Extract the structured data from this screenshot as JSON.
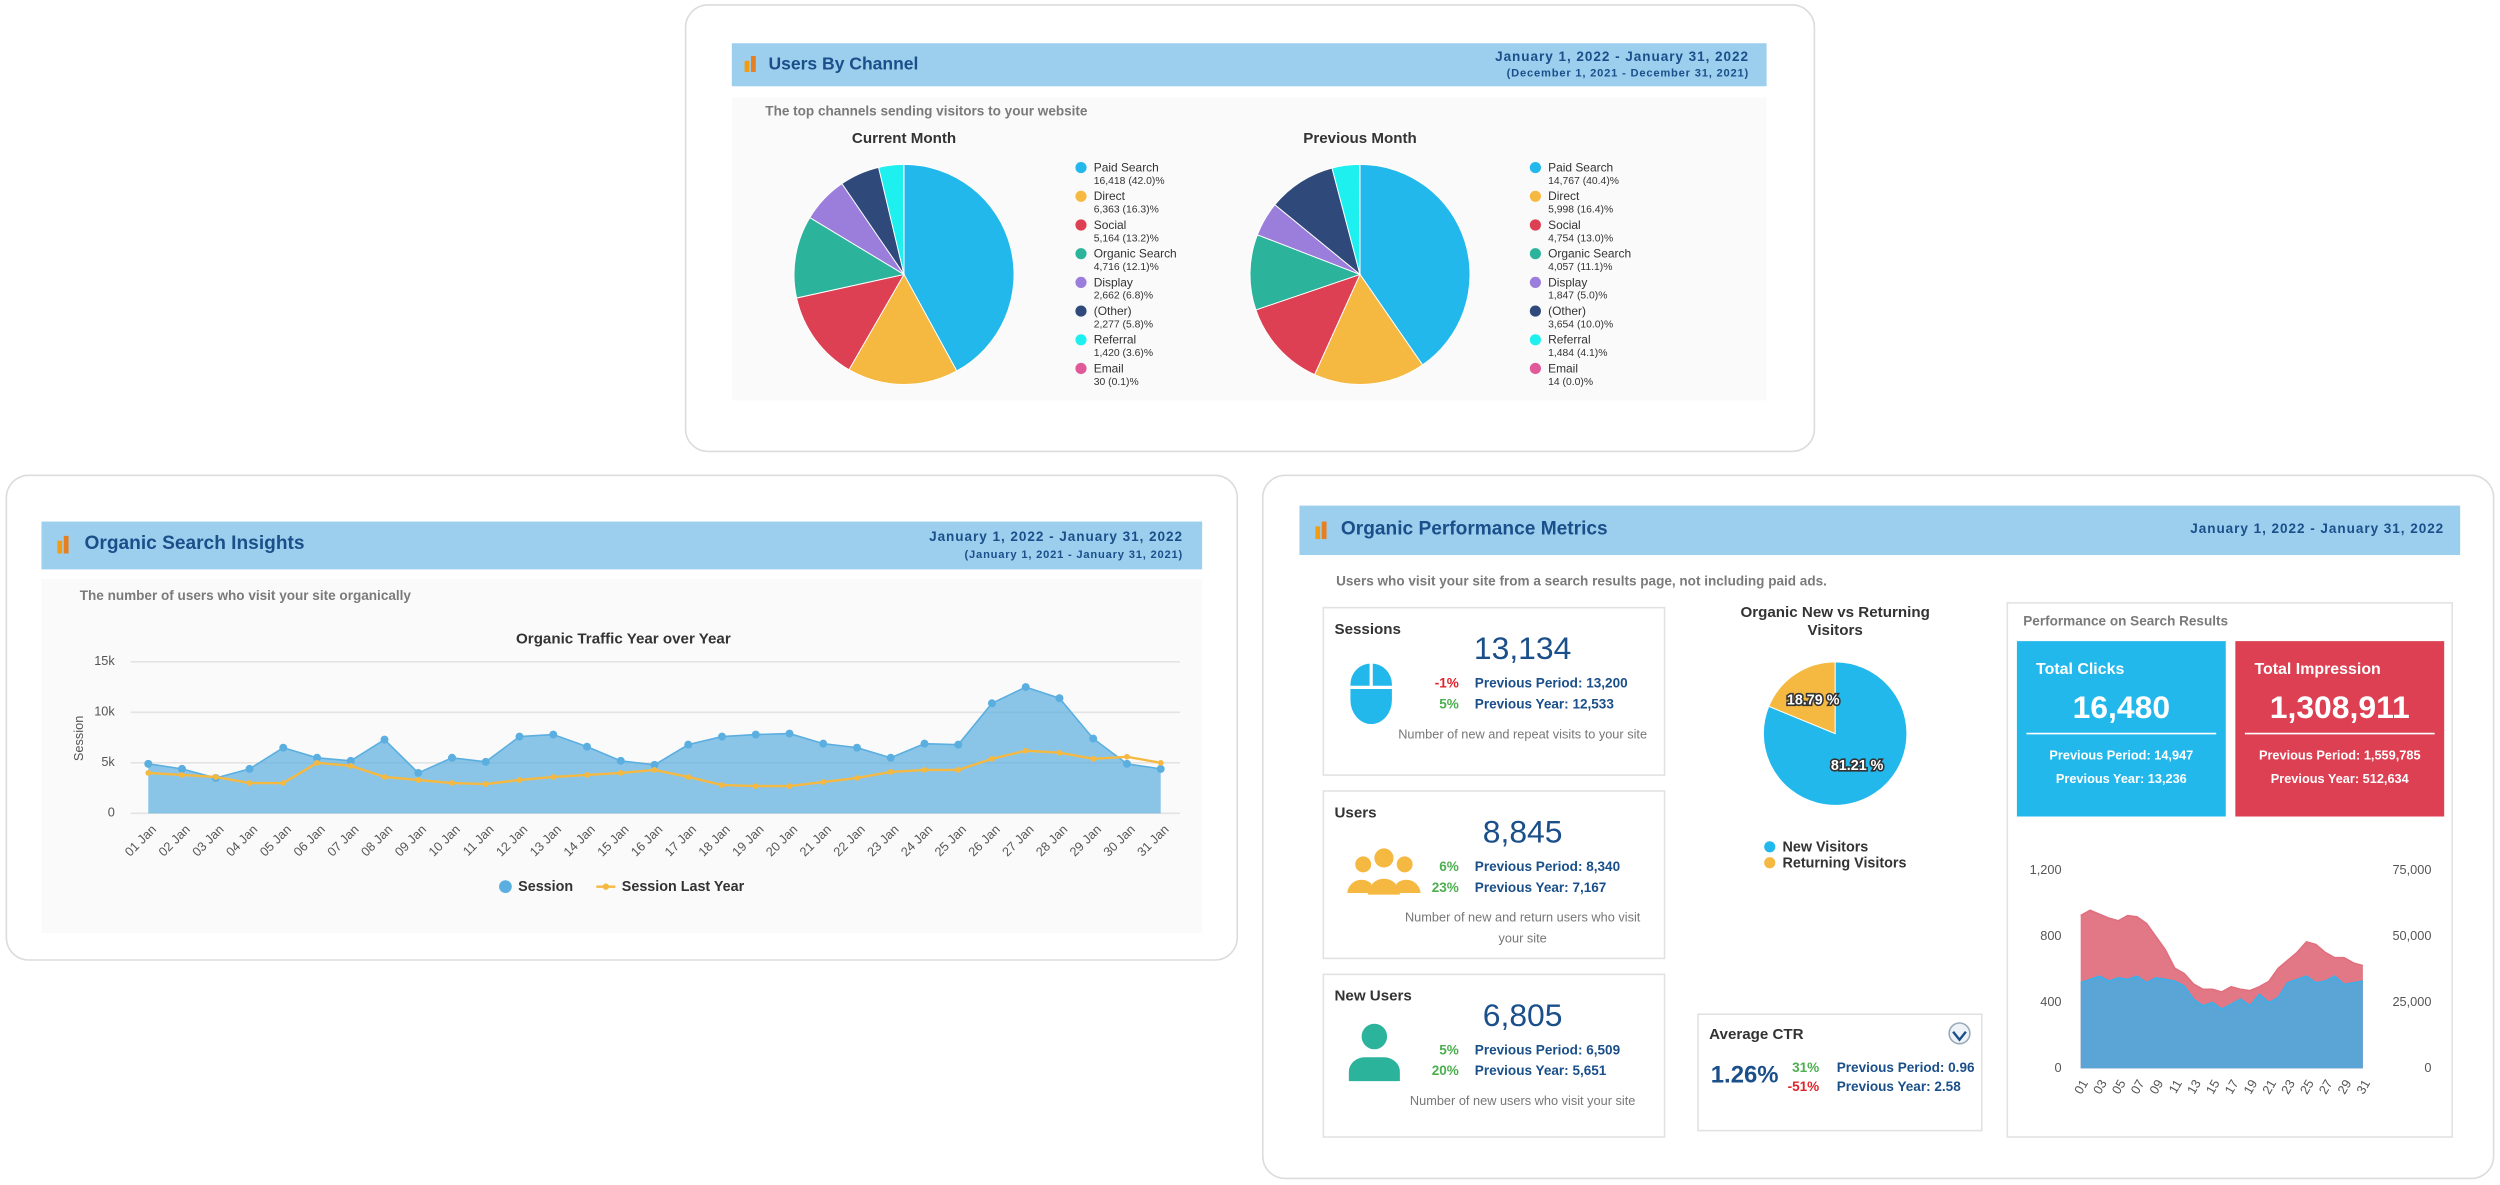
{
  "panels": {
    "channels": {
      "title": "Users By Channel",
      "date": "January 1, 2022 - January 31, 2022",
      "previous_date": "(December 1, 2021 - December 31, 2021)",
      "subtitle": "The top channels sending visitors to your website"
    },
    "organic_insights": {
      "title": "Organic Search Insights",
      "date": "January 1, 2022 - January 31, 2022",
      "previous_date": "(January 1, 2021 - January 31, 2021)",
      "subtitle": "The number of users who visit your site organically"
    },
    "performance": {
      "title": "Organic Performance Metrics",
      "date": "January 1, 2022 - January 31, 2022",
      "subtitle": "Users who visit your site from a search results page, not including paid ads.",
      "metrics": [
        {
          "label": "Sessions",
          "value": "13,134",
          "changes": [
            {
              "change": "-1%",
              "text": "Previous Period: 13,200"
            },
            {
              "change": "5%",
              "text": "Previous Year: 12,533"
            }
          ],
          "description": "Number of new and repeat visits to your site"
        },
        {
          "label": "Users",
          "value": "8,845",
          "changes": [
            {
              "change": "6%",
              "text": "Previous Period: 8,340"
            },
            {
              "change": "23%",
              "text": "Previous Year: 7,167"
            }
          ],
          "description": "Number of new and return users who visit your site"
        },
        {
          "label": "New Users",
          "value": "6,805",
          "changes": [
            {
              "change": "5%",
              "text": "Previous Period: 6,509"
            },
            {
              "change": "20%",
              "text": "Previous Year: 5,651"
            }
          ],
          "description": "Number of new users who visit your site"
        }
      ],
      "ctr": {
        "label": "Average CTR",
        "value": "1.26%",
        "changes": [
          {
            "change": "31%",
            "text": "Previous Period: 0.96"
          },
          {
            "change": "-51%",
            "text": "Previous Year: 2.58"
          }
        ]
      },
      "search_results": {
        "title": "Performance on Search Results",
        "colors": [
          "#22b8ec",
          "#dc4052"
        ],
        "cards": [
          {
            "label": "Total Clicks",
            "value": "16,480",
            "previous_period": "Previous Period: 14,947",
            "previous_year": "Previous Year: 13,236"
          },
          {
            "label": "Total Impression",
            "value": "1,308,911",
            "previous_period": "Previous Period: 1,559,785",
            "previous_year": "Previous Year: 512,634"
          }
        ]
      }
    }
  },
  "chart_data": [
    {
      "type": "pie",
      "title": "Current Month",
      "categories": [
        "Paid Search",
        "Direct",
        "Social",
        "Organic Search",
        "Display",
        "(Other)",
        "Referral",
        "Email"
      ],
      "values": [
        16418,
        6363,
        5164,
        4716,
        2662,
        2277,
        1420,
        30
      ],
      "value_labels": [
        "16,418 (42.0)%",
        "6,363 (16.3)%",
        "5,164 (13.2)%",
        "4,716 (12.1)%",
        "2,662 (6.8)%",
        "2,277 (5.8)%",
        "1,420 (3.6)%",
        "30 (0.1)%"
      ],
      "colors": [
        "#22b8ec",
        "#f5b942",
        "#dc4052",
        "#2bb39b",
        "#9b7ddb",
        "#2f4a7a",
        "#1ef0f0",
        "#e05a9a"
      ],
      "legend": "right"
    },
    {
      "type": "pie",
      "title": "Previous Month",
      "categories": [
        "Paid Search",
        "Direct",
        "Social",
        "Organic Search",
        "Display",
        "(Other)",
        "Referral",
        "Email"
      ],
      "values": [
        14767,
        5998,
        4754,
        4057,
        1847,
        3654,
        1484,
        14
      ],
      "value_labels": [
        "14,767 (40.4)%",
        "5,998 (16.4)%",
        "4,754 (13.0)%",
        "4,057 (11.1)%",
        "1,847 (5.0)%",
        "3,654 (10.0)%",
        "1,484 (4.1)%",
        "14 (0.0)%"
      ],
      "colors": [
        "#22b8ec",
        "#f5b942",
        "#dc4052",
        "#2bb39b",
        "#9b7ddb",
        "#2f4a7a",
        "#1ef0f0",
        "#e05a9a"
      ],
      "legend": "right"
    },
    {
      "type": "line",
      "title": "Organic Traffic Year over Year",
      "y_label": "Session",
      "categories": [
        "01 Jan",
        "02 Jan",
        "03 Jan",
        "04 Jan",
        "05 Jan",
        "06 Jan",
        "07 Jan",
        "08 Jan",
        "09 Jan",
        "10 Jan",
        "11 Jan",
        "12 Jan",
        "13 Jan",
        "14 Jan",
        "15 Jan",
        "16 Jan",
        "17 Jan",
        "18 Jan",
        "19 Jan",
        "20 Jan",
        "21 Jan",
        "22 Jan",
        "23 Jan",
        "24 Jan",
        "25 Jan",
        "26 Jan",
        "27 Jan",
        "28 Jan",
        "29 Jan",
        "30 Jan",
        "31 Jan"
      ],
      "series": [
        {
          "name": "Session",
          "color": "#5aaee0",
          "fill": true,
          "values": [
            4900,
            4400,
            3500,
            4400,
            6500,
            5500,
            5200,
            7300,
            4000,
            5500,
            5100,
            7600,
            7800,
            6600,
            5200,
            4800,
            6800,
            7600,
            7800,
            7900,
            6900,
            6500,
            5500,
            6900,
            6800,
            10900,
            12500,
            11400,
            7400,
            4900,
            4400
          ]
        },
        {
          "name": "Session Last Year",
          "color": "#f5b942",
          "values": [
            4000,
            3800,
            3600,
            3000,
            3000,
            5000,
            4700,
            3600,
            3300,
            3000,
            2900,
            3300,
            3600,
            3800,
            4000,
            4300,
            3600,
            2800,
            2700,
            2700,
            3100,
            3500,
            4100,
            4300,
            4300,
            5400,
            6200,
            6000,
            5400,
            5600,
            5000
          ]
        }
      ],
      "ylim": [
        0,
        15000
      ],
      "yticks": [
        0,
        {
          "value": 5000,
          "label": "5k"
        },
        {
          "value": 10000,
          "label": "10k"
        },
        {
          "value": 15000,
          "label": "15k"
        }
      ],
      "grid": true,
      "legend": "bottom"
    },
    {
      "type": "pie",
      "title": "Organic New vs Returning Visitors",
      "categories": [
        "New Visitors",
        "Returning Visitors"
      ],
      "values": [
        81.21,
        18.79
      ],
      "value_labels": [
        "81.21 %",
        "18.79 %"
      ],
      "colors": [
        "#22b8ec",
        "#f5b942"
      ],
      "legend": "bottom"
    },
    {
      "type": "area",
      "categories": [
        "01",
        null,
        "03",
        null,
        "05",
        null,
        "07",
        null,
        "09",
        null,
        "11",
        null,
        "13",
        null,
        "15",
        null,
        "17",
        null,
        "19",
        null,
        "21",
        null,
        "23",
        null,
        "25",
        null,
        "27",
        null,
        "29",
        null,
        "31"
      ],
      "series": [
        {
          "color": "#3ab0ea",
          "values": [
            520,
            540,
            560,
            530,
            550,
            540,
            560,
            520,
            550,
            540,
            530,
            500,
            420,
            380,
            400,
            360,
            390,
            420,
            380,
            450,
            400,
            430,
            520,
            540,
            560,
            520,
            530,
            560,
            510,
            520,
            530
          ]
        },
        {
          "color": "#e0707e",
          "axis": "y2",
          "values": [
            58000,
            60000,
            58500,
            57000,
            56000,
            58000,
            57500,
            55000,
            50000,
            45000,
            38000,
            36000,
            32000,
            30000,
            30000,
            29000,
            31000,
            30000,
            29500,
            31000,
            33000,
            38000,
            41000,
            44000,
            48000,
            47000,
            44000,
            42000,
            42000,
            40000,
            39000
          ]
        }
      ],
      "ylim": [
        0,
        1200
      ],
      "yticks": [
        0,
        400,
        800,
        {
          "value": 1200,
          "label": "1,200"
        }
      ],
      "y2lim": [
        0,
        75000
      ],
      "y2ticks": [
        0,
        {
          "value": 25000,
          "label": "25,000"
        },
        {
          "value": 50000,
          "label": "50,000"
        },
        {
          "value": 75000,
          "label": "75,000"
        }
      ]
    }
  ]
}
